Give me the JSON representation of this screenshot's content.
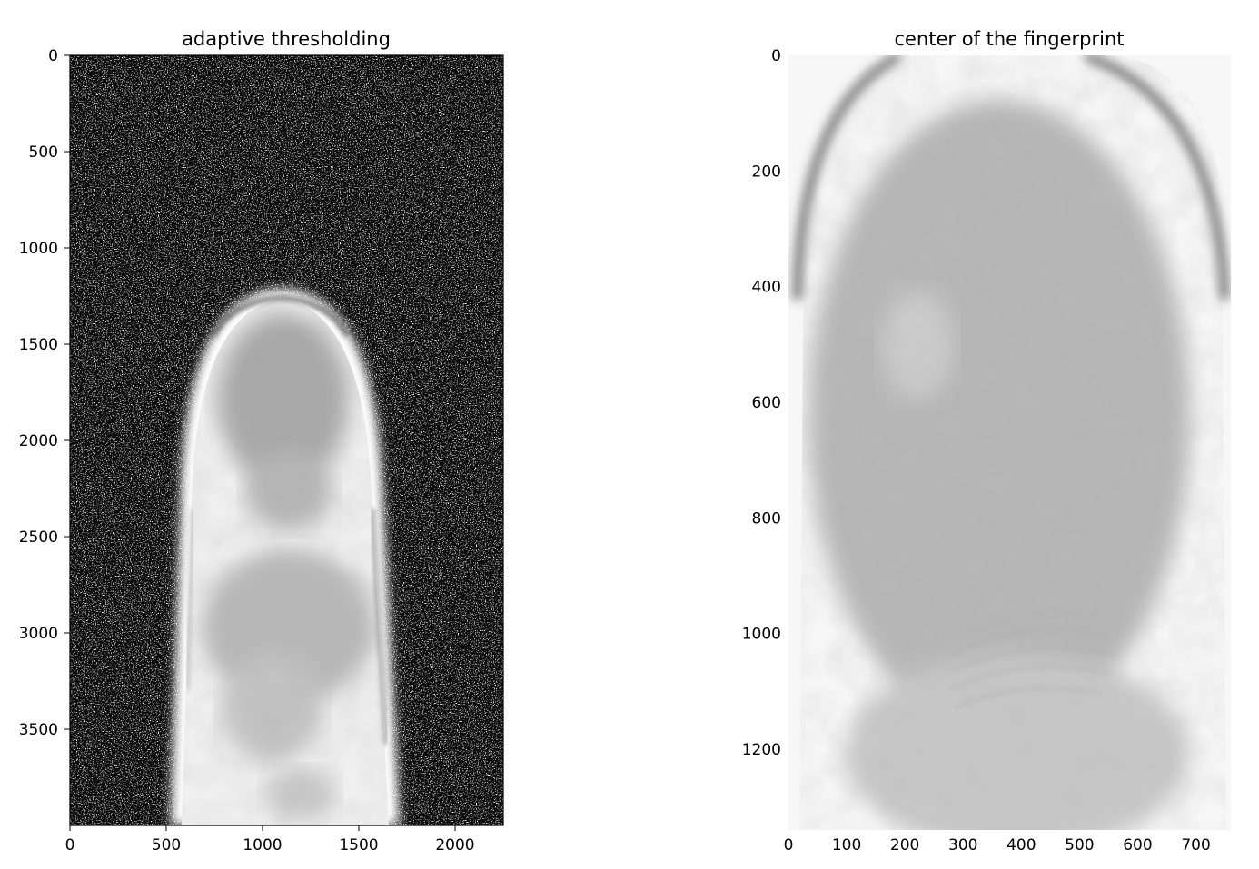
{
  "panels": [
    {
      "title": "adaptive thresholding",
      "xlim": [
        0,
        2250
      ],
      "ylim": [
        4000,
        0
      ],
      "x_ticks": [
        0,
        500,
        1000,
        1500,
        2000
      ],
      "y_ticks": [
        0,
        500,
        1000,
        1500,
        2000,
        2500,
        3000,
        3500
      ],
      "content": "thresholded fingertip image with speckle noise background"
    },
    {
      "title": "center of the fingerprint",
      "xlim": [
        0,
        760
      ],
      "ylim": [
        1340,
        0
      ],
      "x_ticks": [
        0,
        100,
        200,
        300,
        400,
        500,
        600,
        700
      ],
      "y_ticks": [
        0,
        200,
        400,
        600,
        800,
        1000,
        1200
      ],
      "content": "cropped blurred fingerprint center"
    }
  ]
}
